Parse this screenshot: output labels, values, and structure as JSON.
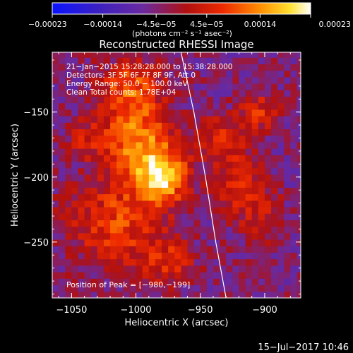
{
  "chart_data": {
    "type": "heatmap",
    "title": "Reconstructed RHESSI Image",
    "xlabel": "Heliocentric X (arcsec)",
    "ylabel": "Heliocentric Y (arcsec)",
    "xlim": [
      -1065,
      -872
    ],
    "ylim": [
      -293,
      -104
    ],
    "xticks": [
      -1050,
      -1000,
      -950,
      -900
    ],
    "xtick_labels": [
      "−1050",
      "−1000",
      "−950",
      "−900"
    ],
    "yticks": [
      -150,
      -200,
      -250
    ],
    "ytick_labels": [
      "−150",
      "−200",
      "−250"
    ],
    "colorbar": {
      "min": -0.00023,
      "max": 0.00023,
      "ticks": [
        -0.00023,
        -0.00014,
        -4.5e-05,
        4.5e-05,
        0.00014,
        0.00023
      ],
      "tick_labels": [
        "−0.00023",
        "−0.00014",
        "−4.5e−05",
        "4.5e−05",
        "0.00014",
        "0.00023"
      ],
      "unit_label": "(photons cm⁻² s⁻¹ asec⁻²)",
      "colormap": "blue-purple-red-orange-yellow-white"
    },
    "annotations": [
      "21−Jan−2015 15:28:28.000 to 15:38:28.000",
      "Detectors: 3F 5F 6F 7F 8F 9F, Att 0",
      "Energy Range: 50.0 − 100.0 keV",
      "Clean     Total counts: 1.78E+04"
    ],
    "peak": {
      "label": "Position of Peak = [−980,−199]",
      "x": -980,
      "y": -199
    },
    "limb_curve": [
      [
        -965,
        -104
      ],
      [
        -955,
        -150
      ],
      [
        -946,
        -200
      ],
      [
        -938,
        -250
      ],
      [
        -930,
        -293
      ]
    ],
    "sources": [
      {
        "x": -980,
        "y": -199,
        "peak": 0.00023,
        "sx": 14,
        "sy": 14
      },
      {
        "x": -1000,
        "y": -170,
        "peak": 0.00017,
        "sx": 20,
        "sy": 20
      },
      {
        "x": -1005,
        "y": -130,
        "peak": 0.00013,
        "sx": 16,
        "sy": 14
      },
      {
        "x": -1015,
        "y": -235,
        "peak": 0.00012,
        "sx": 26,
        "sy": 24
      },
      {
        "x": -975,
        "y": -265,
        "peak": 9e-05,
        "sx": 14,
        "sy": 12
      },
      {
        "x": -920,
        "y": -205,
        "peak": 9e-05,
        "sx": 13,
        "sy": 20
      },
      {
        "x": -935,
        "y": -170,
        "peak": 0.0001,
        "sx": 10,
        "sy": 12
      },
      {
        "x": -905,
        "y": -150,
        "peak": 0.0001,
        "sx": 11,
        "sy": 11
      },
      {
        "x": -900,
        "y": -230,
        "peak": 7e-05,
        "sx": 11,
        "sy": 13
      },
      {
        "x": -1040,
        "y": -170,
        "peak": 6e-05,
        "sx": 10,
        "sy": 10
      }
    ],
    "background_level": -4.5e-05,
    "grid": false
  },
  "timestamp": "15−Jul−2017 10:46"
}
